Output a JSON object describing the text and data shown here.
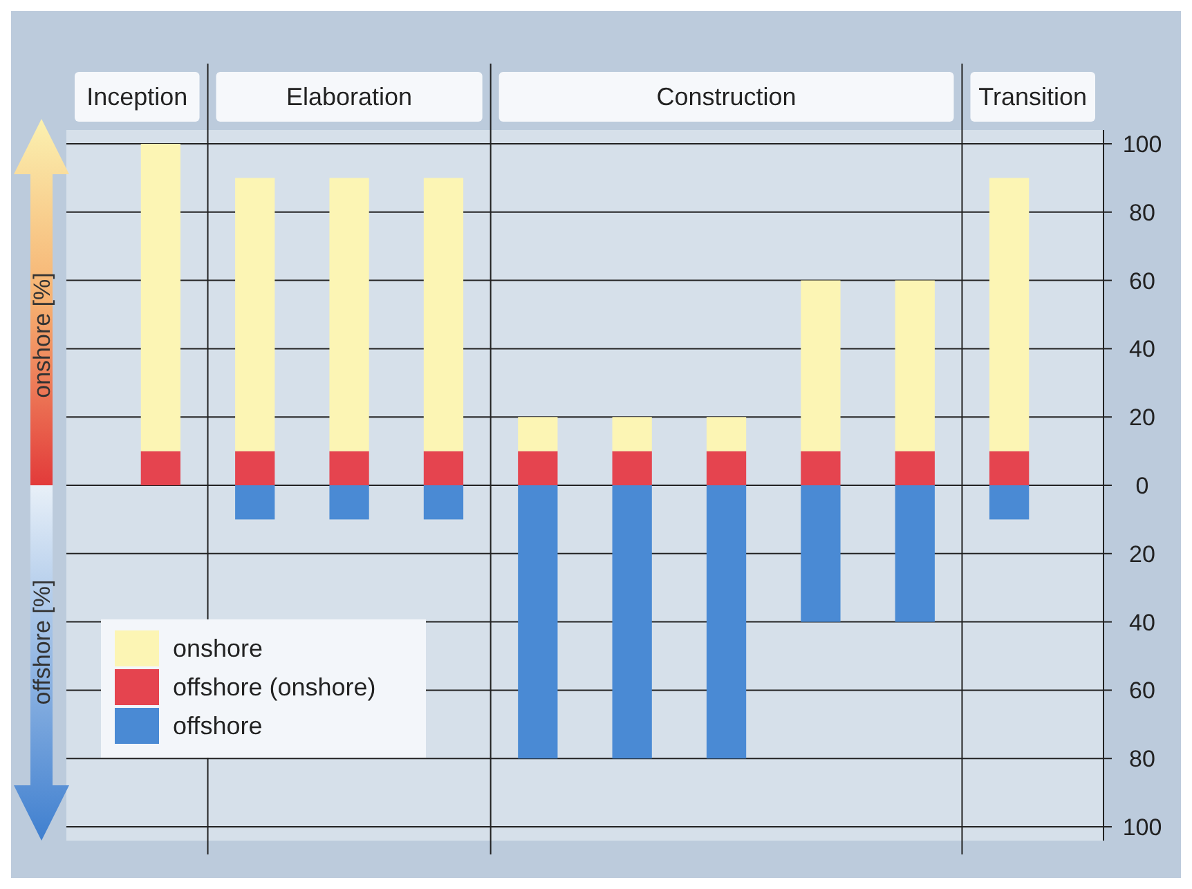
{
  "chart_data": {
    "type": "bar",
    "stacked": true,
    "categories": [
      null,
      null,
      null,
      null,
      null,
      null,
      null,
      null,
      null,
      null
    ],
    "tick_labels": "y",
    "series": [
      {
        "name": "offshore (onshore)",
        "color": "#e5444f",
        "values": [
          10,
          10,
          10,
          10,
          10,
          10,
          10,
          10,
          10,
          10
        ]
      },
      {
        "name": "onshore",
        "color": "#fcf5b4",
        "values": [
          90,
          80,
          80,
          80,
          10,
          10,
          10,
          50,
          50,
          80
        ]
      },
      {
        "name": "offshore",
        "color": "#4a8ad4",
        "values": [
          0,
          -10,
          -10,
          -10,
          -80,
          -80,
          -80,
          -40,
          -40,
          -10
        ]
      }
    ],
    "ylim": [
      -100,
      100
    ],
    "yticks": [
      {
        "value": -100,
        "label": "100"
      },
      {
        "value": -80,
        "label": "80"
      },
      {
        "value": -60,
        "label": "60"
      },
      {
        "value": -40,
        "label": "40"
      },
      {
        "value": -20,
        "label": "20"
      },
      0,
      20,
      40,
      60,
      80,
      100
    ],
    "grid": "y",
    "legend": "bottom left",
    "ylabel": "onshore [%]",
    "annotations": [
      "offshore [%]",
      "Inception",
      "Elaboration",
      "Construction",
      "Transition"
    ]
  }
}
